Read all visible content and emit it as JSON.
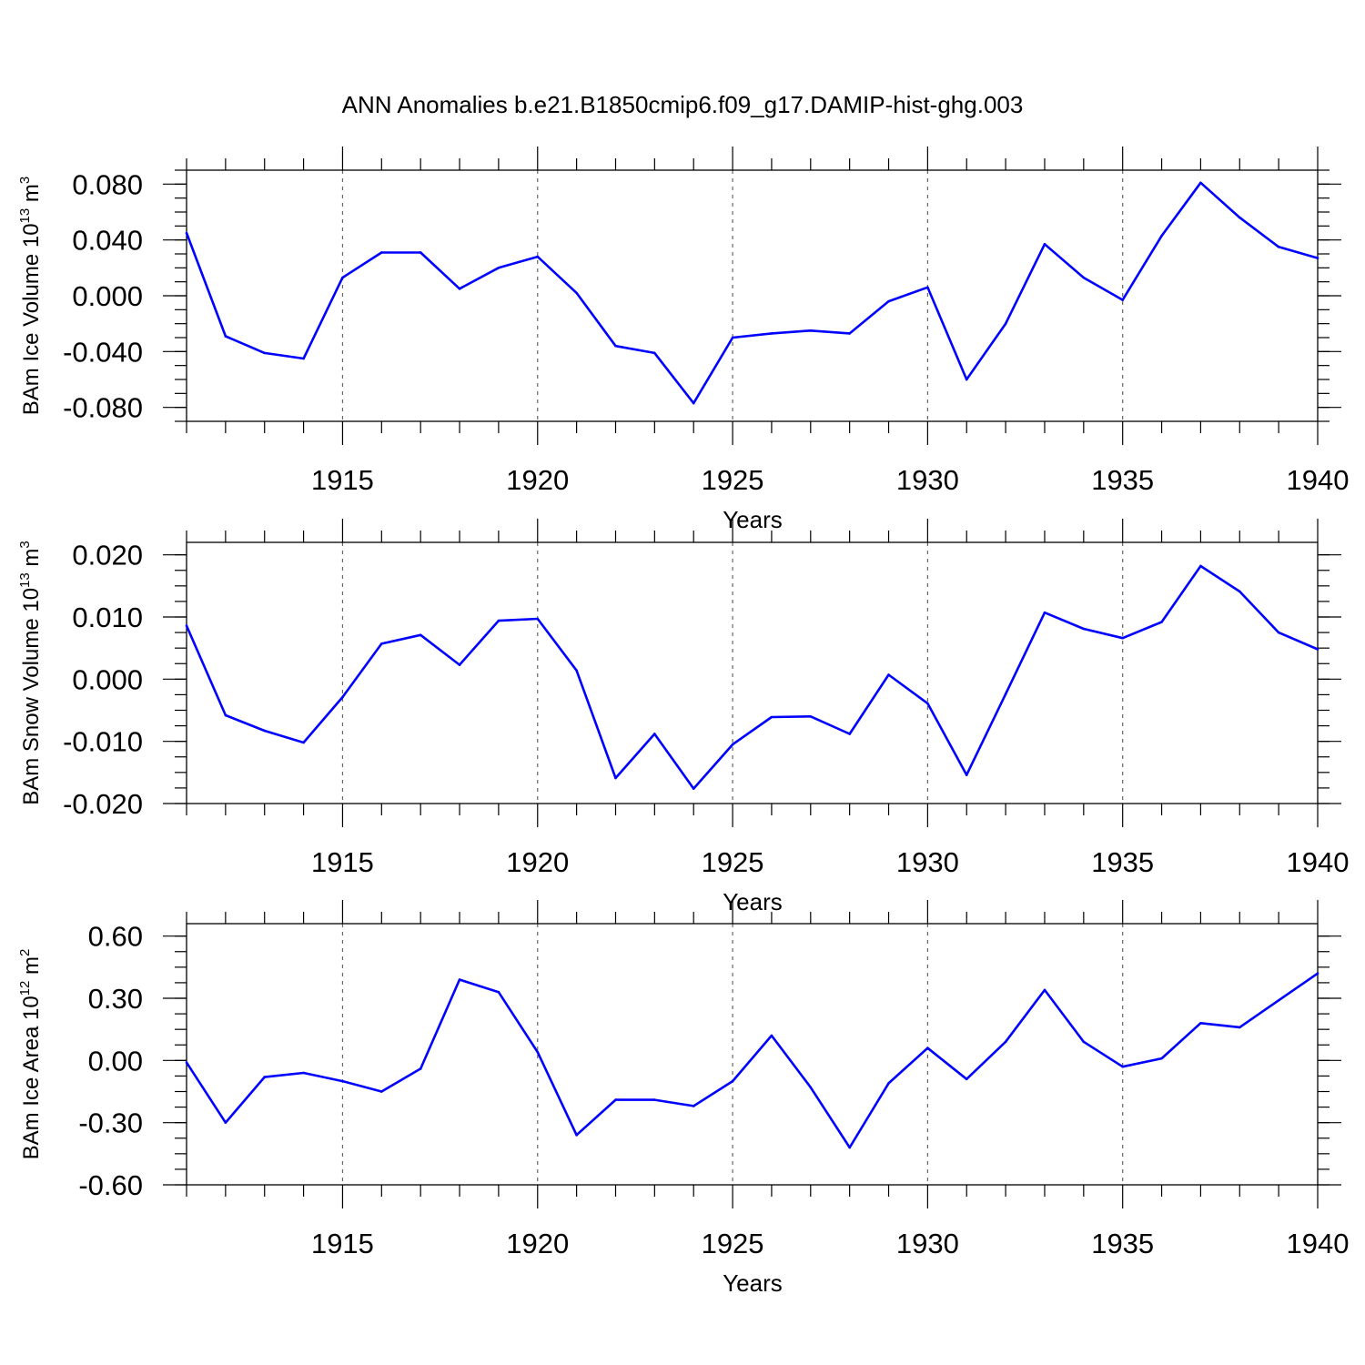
{
  "title": "ANN Anomalies b.e21.B1850cmip6.f09_g17.DAMIP-hist-ghg.003",
  "chart_data": [
    {
      "type": "line",
      "ylabel_main": "BAm Ice Volume 10",
      "ylabel_exp": "13",
      "ylabel_unit": " m",
      "ylabel_unit_exp": "3",
      "xlabel": "Years",
      "xlim": [
        1911,
        1940
      ],
      "ylim": [
        -0.09,
        0.09
      ],
      "xticks": [
        "1915",
        "1920",
        "1925",
        "1930",
        "1935",
        "1940"
      ],
      "yticks": [
        "0.080",
        "0.040",
        "0.000",
        "-0.040",
        "-0.080"
      ],
      "ytick_values": [
        0.08,
        0.04,
        0.0,
        -0.04,
        -0.08
      ],
      "line_color": "#0000ff",
      "x": [
        1911,
        1912,
        1913,
        1914,
        1915,
        1916,
        1917,
        1918,
        1919,
        1920,
        1921,
        1922,
        1923,
        1924,
        1925,
        1926,
        1927,
        1928,
        1929,
        1930,
        1931,
        1932,
        1933,
        1934,
        1935,
        1936,
        1937,
        1938,
        1939,
        1940
      ],
      "values": [
        0.045,
        -0.029,
        -0.041,
        -0.045,
        0.013,
        0.031,
        0.031,
        0.005,
        0.02,
        0.028,
        0.002,
        -0.036,
        -0.041,
        -0.077,
        -0.03,
        -0.027,
        -0.025,
        -0.027,
        -0.004,
        0.006,
        -0.06,
        -0.02,
        0.037,
        0.013,
        -0.003,
        0.043,
        0.081,
        0.056,
        0.035,
        0.027
      ]
    },
    {
      "type": "line",
      "ylabel_main": "BAm Snow Volume 10",
      "ylabel_exp": "13",
      "ylabel_unit": " m",
      "ylabel_unit_exp": "3",
      "xlabel": "Years",
      "xlim": [
        1911,
        1940
      ],
      "ylim": [
        -0.02,
        0.022
      ],
      "xticks": [
        "1915",
        "1920",
        "1925",
        "1930",
        "1935",
        "1940"
      ],
      "yticks": [
        "0.020",
        "0.010",
        "0.000",
        "-0.010",
        "-0.020"
      ],
      "ytick_values": [
        0.02,
        0.01,
        0.0,
        -0.01,
        -0.02
      ],
      "line_color": "#0000ff",
      "x": [
        1911,
        1912,
        1913,
        1914,
        1915,
        1916,
        1917,
        1918,
        1919,
        1920,
        1921,
        1922,
        1923,
        1924,
        1925,
        1926,
        1927,
        1928,
        1929,
        1930,
        1931,
        1932,
        1933,
        1934,
        1935,
        1936,
        1937,
        1938,
        1939,
        1940
      ],
      "values": [
        0.0086,
        -0.0058,
        -0.0083,
        -0.0102,
        -0.0029,
        0.0057,
        0.0071,
        0.0023,
        0.0094,
        0.0097,
        0.0014,
        -0.0159,
        -0.0088,
        -0.0176,
        -0.0105,
        -0.0061,
        -0.006,
        -0.0088,
        0.0007,
        -0.0039,
        -0.0154,
        -0.0024,
        0.0107,
        0.0081,
        0.0066,
        0.0092,
        0.0182,
        0.0141,
        0.0075,
        0.0048
      ]
    },
    {
      "type": "line",
      "ylabel_main": "BAm Ice Area 10",
      "ylabel_exp": "12",
      "ylabel_unit": " m",
      "ylabel_unit_exp": "2",
      "xlabel": "Years",
      "xlim": [
        1911,
        1940
      ],
      "ylim": [
        -0.6,
        0.66
      ],
      "xticks": [
        "1915",
        "1920",
        "1925",
        "1930",
        "1935",
        "1940"
      ],
      "yticks": [
        "0.60",
        "0.30",
        "0.00",
        "-0.30",
        "-0.60"
      ],
      "ytick_values": [
        0.6,
        0.3,
        0.0,
        -0.3,
        -0.6
      ],
      "line_color": "#0000ff",
      "x": [
        1911,
        1912,
        1913,
        1914,
        1915,
        1916,
        1917,
        1918,
        1919,
        1920,
        1921,
        1922,
        1923,
        1924,
        1925,
        1926,
        1927,
        1928,
        1929,
        1930,
        1931,
        1932,
        1933,
        1934,
        1935,
        1936,
        1937,
        1938,
        1939,
        1940
      ],
      "values": [
        -0.01,
        -0.3,
        -0.08,
        -0.06,
        -0.1,
        -0.15,
        -0.04,
        0.39,
        0.33,
        0.04,
        -0.36,
        -0.19,
        -0.19,
        -0.22,
        -0.1,
        0.12,
        -0.13,
        -0.42,
        -0.11,
        0.06,
        -0.09,
        0.09,
        0.34,
        0.09,
        -0.03,
        0.01,
        0.18,
        0.16,
        0.29,
        0.42
      ]
    }
  ]
}
